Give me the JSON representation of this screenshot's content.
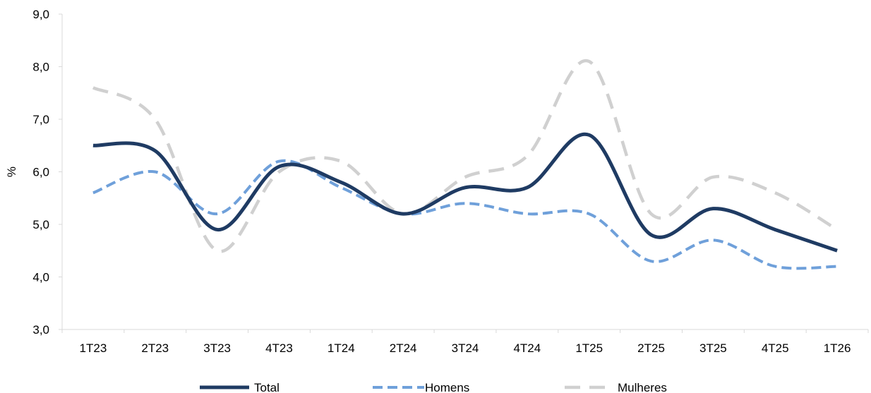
{
  "chart_data": {
    "type": "line",
    "title": "",
    "xlabel": "",
    "ylabel": "%",
    "categories": [
      "1T23",
      "2T23",
      "3T23",
      "4T23",
      "1T24",
      "2T24",
      "3T24",
      "4T24",
      "1T25",
      "2T25",
      "3T25",
      "4T25",
      "1T26"
    ],
    "ylim": [
      3.0,
      9.0
    ],
    "yticks": [
      "3,0",
      "4,0",
      "5,0",
      "6,0",
      "7,0",
      "8,0",
      "9,0"
    ],
    "grid": false,
    "legend_position": "bottom",
    "series": [
      {
        "name": "Total",
        "color": "#1f3b63",
        "style": "solid",
        "values": [
          6.5,
          6.4,
          4.9,
          6.1,
          5.8,
          5.2,
          5.7,
          5.7,
          6.7,
          4.8,
          5.3,
          4.9,
          4.5
        ]
      },
      {
        "name": "Homens",
        "color": "#6fa0da",
        "style": "dashed",
        "values": [
          5.6,
          6.0,
          5.2,
          6.2,
          5.7,
          5.2,
          5.4,
          5.2,
          5.2,
          4.3,
          4.7,
          4.2,
          4.2
        ]
      },
      {
        "name": "Mulheres",
        "color": "#d0d0d0",
        "style": "dashed",
        "values": [
          7.6,
          7.0,
          4.5,
          6.0,
          6.2,
          5.2,
          5.9,
          6.3,
          8.1,
          5.2,
          5.9,
          5.6,
          4.9
        ]
      }
    ]
  }
}
